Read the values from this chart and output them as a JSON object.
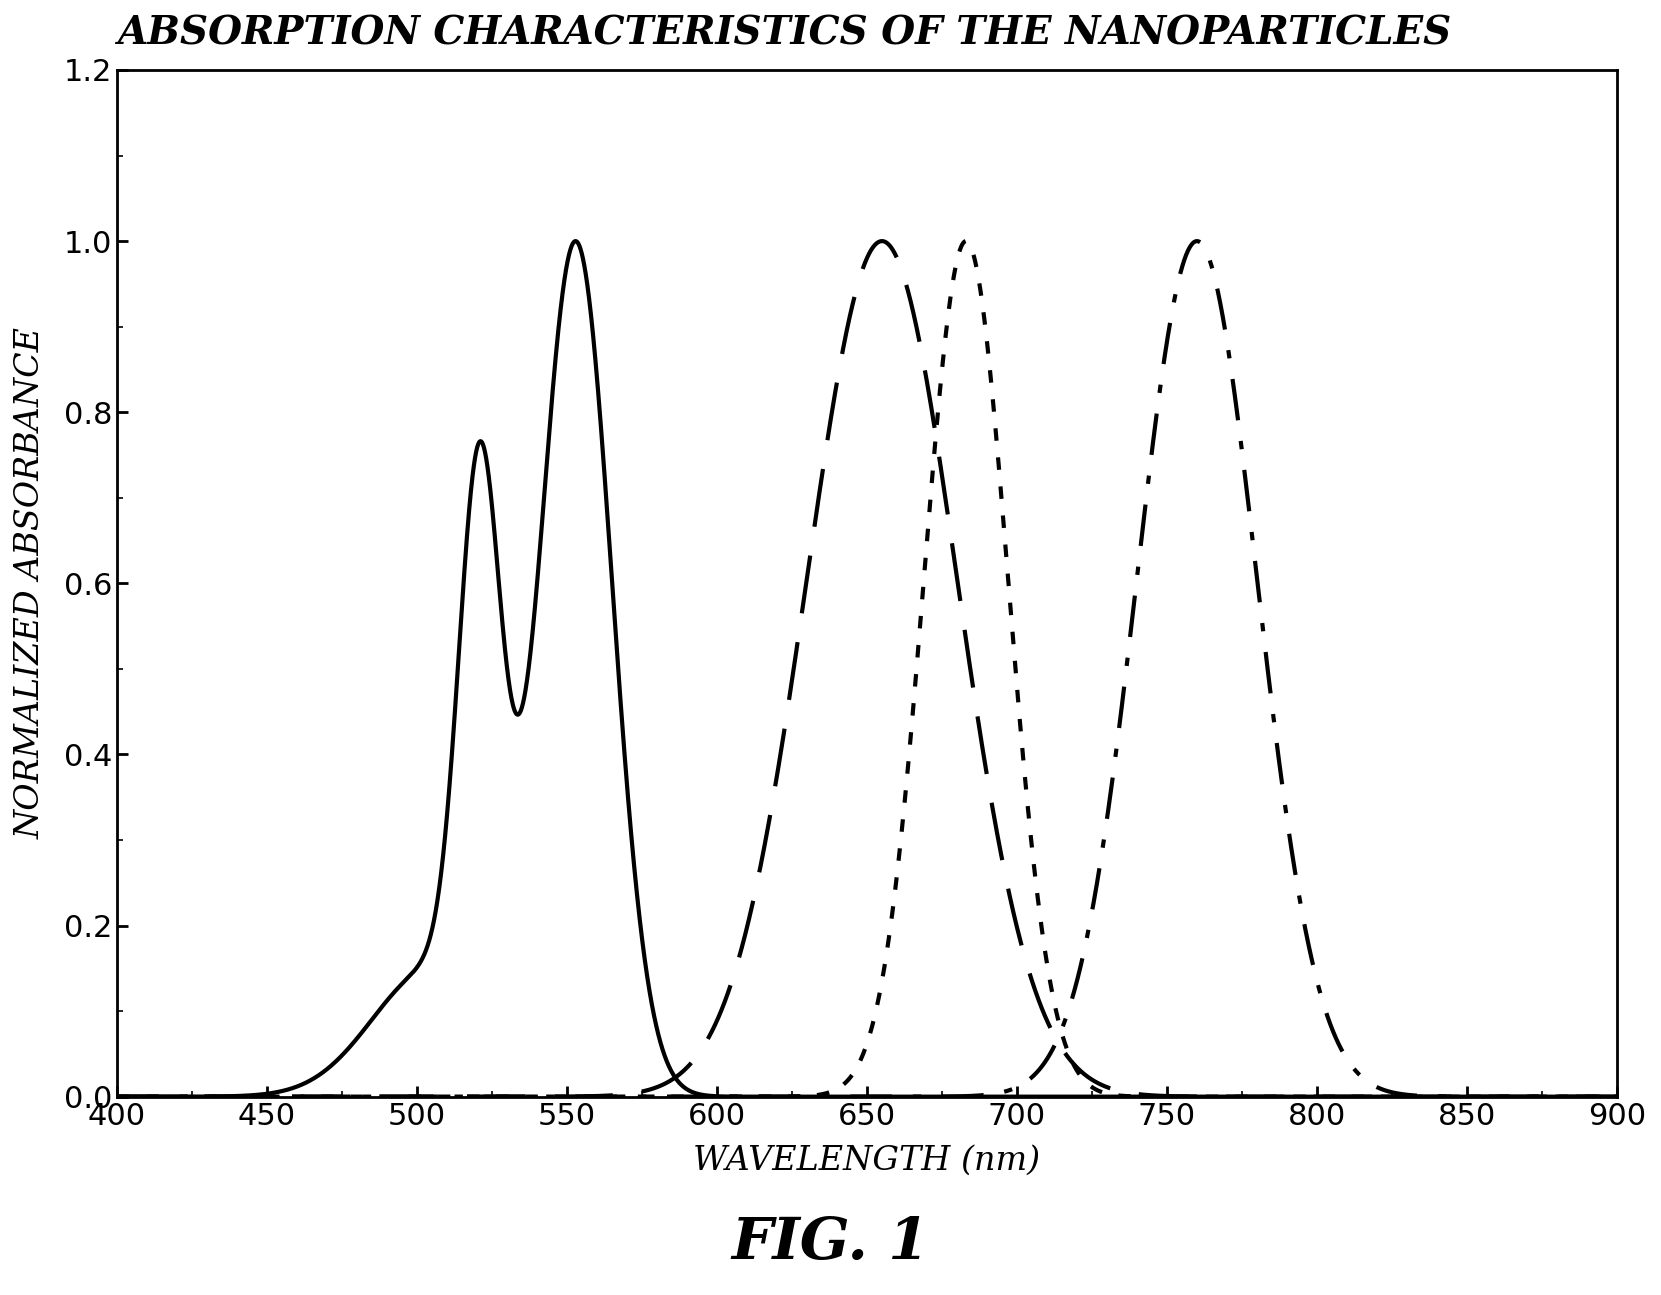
{
  "title": "ABSORPTION CHARACTERISTICS OF THE NANOPARTICLES",
  "xlabel": "WAVELENGTH (nm)",
  "ylabel": "NORMALIZED ABSORBANCE",
  "fig_label": "FIG. 1",
  "xlim": [
    400,
    900
  ],
  "ylim": [
    0.0,
    1.2
  ],
  "xticks": [
    400,
    450,
    500,
    550,
    600,
    650,
    700,
    750,
    800,
    850,
    900
  ],
  "yticks": [
    0.0,
    0.2,
    0.4,
    0.6,
    0.8,
    1.0,
    1.2
  ],
  "curve1": {
    "peak": 553,
    "sigma": 12,
    "shoulder_peak": 521,
    "shoulder_height": 0.635,
    "shoulder_sigma": 7,
    "broad_rise_peak": 505,
    "broad_rise_sigma": 20,
    "broad_rise_amp": 0.15,
    "linewidth": 3.0,
    "color": "#000000"
  },
  "curve2": {
    "peak": 655,
    "sigma": 25,
    "linewidth": 3.0,
    "color": "#000000",
    "dash_on": 14,
    "dash_off": 7
  },
  "curve3": {
    "peak": 683,
    "sigma": 14,
    "linewidth": 3.0,
    "color": "#000000",
    "dot_on": 3,
    "dot_off": 4
  },
  "curve4": {
    "peak": 760,
    "sigma": 20,
    "linewidth": 3.0,
    "color": "#000000",
    "dashdot_on1": 10,
    "dashdot_off1": 5,
    "dashdot_on2": 2,
    "dashdot_off2": 5
  },
  "background_color": "#ffffff",
  "title_fontsize": 28,
  "axis_label_fontsize": 24,
  "tick_fontsize": 22,
  "fig_label_fontsize": 42,
  "spine_linewidth": 2.0
}
